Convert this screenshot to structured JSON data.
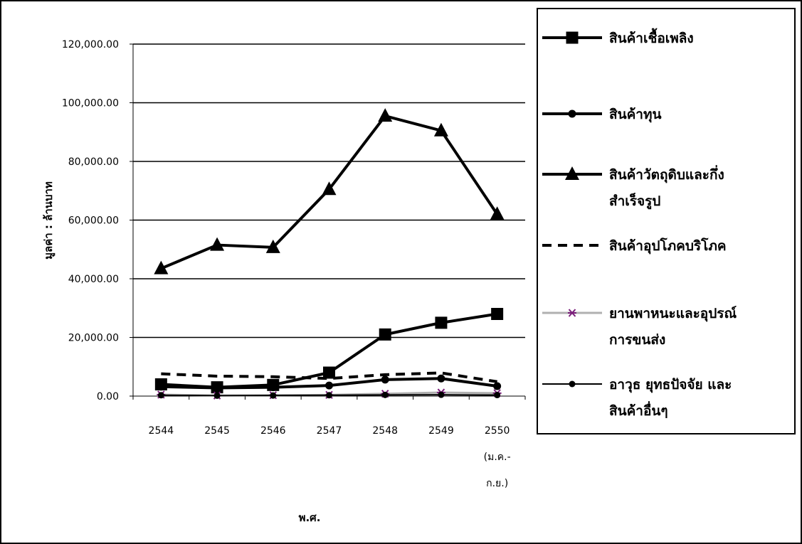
{
  "chart_data": {
    "type": "line",
    "title": "",
    "xlabel": "พ.ศ.",
    "ylabel": "มูลค่า : ล้านบาท",
    "categories": [
      [
        "2544"
      ],
      [
        "2545"
      ],
      [
        "2546"
      ],
      [
        "2547"
      ],
      [
        "2548"
      ],
      [
        "2549"
      ],
      [
        "2550",
        "(ม.ค.-",
        "ก.ย.)"
      ]
    ],
    "ylim": [
      0,
      120000
    ],
    "yticks": [
      "0.00",
      "20,000.00",
      "40,000.00",
      "60,000.00",
      "80,000.00",
      "100,000.00",
      "120,000.00"
    ],
    "grid": "horizontal",
    "legend_position": "right",
    "series": [
      {
        "name": [
          "สินค้าเชื้อเพลิง"
        ],
        "values": [
          4000,
          3000,
          3800,
          8000,
          21000,
          25000,
          28000
        ],
        "color": "#000000",
        "dash": "",
        "weight": "heavy",
        "marker": "square"
      },
      {
        "name": [
          "สินค้าทุน"
        ],
        "values": [
          3200,
          2800,
          3000,
          3600,
          5600,
          6000,
          3400
        ],
        "color": "#000000",
        "dash": "",
        "weight": "heavy",
        "marker": "circle"
      },
      {
        "name": [
          "สินค้าวัตถุดิบและกึ่ง",
          "สำเร็จรูป"
        ],
        "values": [
          43500,
          51500,
          50700,
          70500,
          95500,
          90500,
          62000
        ],
        "color": "#000000",
        "dash": "",
        "weight": "heavy",
        "marker": "triangle"
      },
      {
        "name": [
          "สินค้าอุปโภคบริโภค"
        ],
        "values": [
          7600,
          6800,
          6600,
          6000,
          7300,
          7900,
          4900
        ],
        "color": "#000000",
        "dash": "dashed",
        "weight": "heavy",
        "marker": "none"
      },
      {
        "name": [
          "ยานพาหนะและอุปรณ์",
          "การขนส่ง"
        ],
        "values": [
          500,
          200,
          300,
          400,
          800,
          1200,
          1000
        ],
        "color": "#b0b0b0",
        "marker_color": "#7b1f7b",
        "dash": "",
        "weight": "thin",
        "marker": "asterisk"
      },
      {
        "name": [
          "อาวุธ ยุทธปัจจัย และ",
          "สินค้าอื่นๆ"
        ],
        "values": [
          300,
          150,
          200,
          300,
          400,
          450,
          350
        ],
        "color": "#000000",
        "dash": "",
        "weight": "thin",
        "marker": "circle-small"
      }
    ]
  }
}
